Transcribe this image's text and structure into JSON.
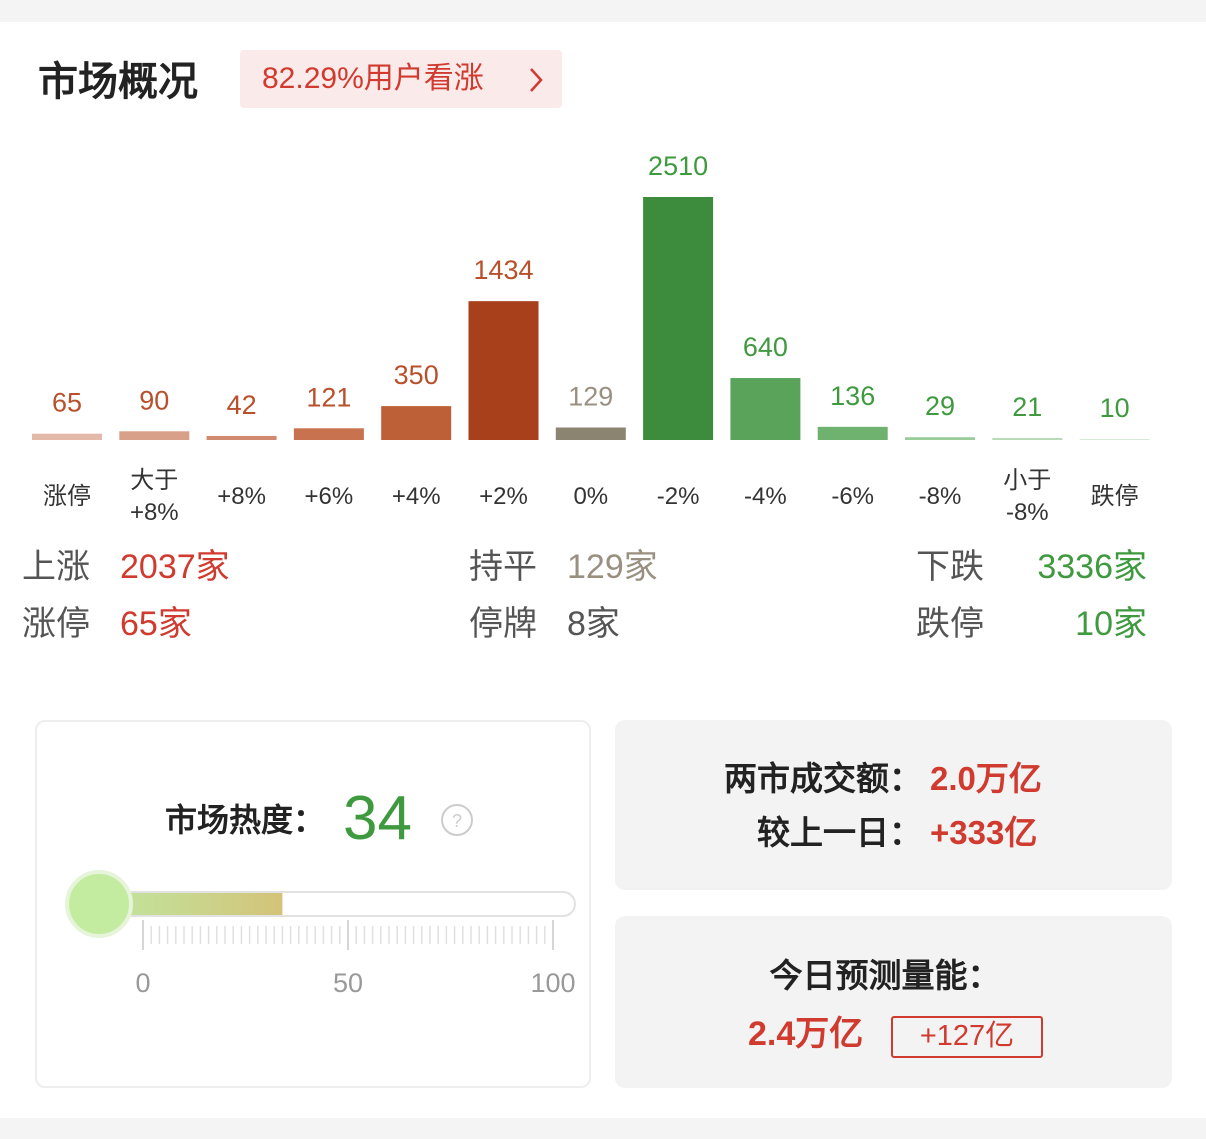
{
  "header": {
    "title": "市场概况",
    "badge": "82.29%用户看涨"
  },
  "chart_data": {
    "type": "bar",
    "categories": [
      "涨停",
      "大于 +8%",
      "+8%",
      "+6%",
      "+4%",
      "+2%",
      "0%",
      "-2%",
      "-4%",
      "-6%",
      "-8%",
      "小于 -8%",
      "跌停"
    ],
    "values": [
      65,
      90,
      42,
      121,
      350,
      1434,
      129,
      2510,
      640,
      136,
      29,
      21,
      10
    ],
    "colors": [
      "#e3b9aa",
      "#d9a089",
      "#d08a70",
      "#c9724f",
      "#bd6038",
      "#a8401c",
      "#8a8470",
      "#3d8c3d",
      "#5aa35a",
      "#6fb16f",
      "#9acb9a",
      "#b8dab8",
      "#d6ead6"
    ],
    "label_colors": [
      "#b8502c",
      "#b8502c",
      "#b8502c",
      "#b8502c",
      "#b8502c",
      "#b8502c",
      "#999080",
      "#3f9a3f",
      "#3f9a3f",
      "#3f9a3f",
      "#3f9a3f",
      "#3f9a3f",
      "#3f9a3f"
    ]
  },
  "summary": [
    [
      {
        "label": "上涨",
        "value": "2037家",
        "color": "#d03a2f"
      },
      {
        "label": "持平",
        "value": "129家",
        "color": "#9a9080"
      },
      {
        "label": "下跌",
        "value": "3336家",
        "color": "#3f9a3f"
      }
    ],
    [
      {
        "label": "涨停",
        "value": "65家",
        "color": "#d03a2f"
      },
      {
        "label": "停牌",
        "value": "8家",
        "color": "#555"
      },
      {
        "label": "跌停",
        "value": "10家",
        "color": "#3f9a3f"
      }
    ]
  ],
  "heat": {
    "label": "市场热度：",
    "value": 34,
    "range": [
      0,
      100
    ],
    "ticks": [
      0,
      50,
      100
    ]
  },
  "turnover": {
    "label": "两市成交额：",
    "value": "2.0万亿",
    "change_label": "较上一日：",
    "change": "+333亿"
  },
  "forecast": {
    "label": "今日预测量能：",
    "value": "2.4万亿",
    "change": "+127亿"
  }
}
